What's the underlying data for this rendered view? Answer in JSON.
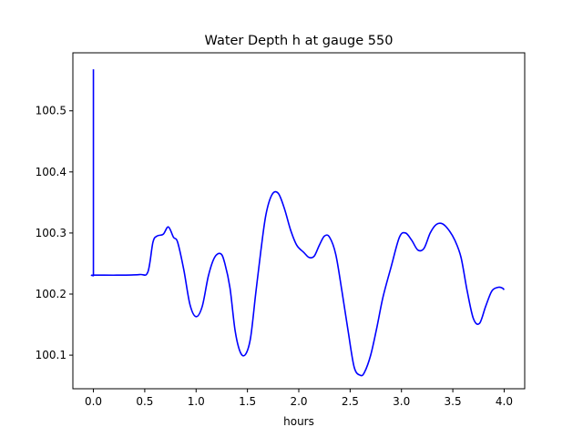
{
  "chart_data": {
    "type": "line",
    "title": "Water Depth h at gauge 550",
    "xlabel": "hours",
    "ylabel": "",
    "xlim": [
      -0.2,
      4.2
    ],
    "ylim": [
      100.045,
      100.595
    ],
    "xticks": [
      0.0,
      0.5,
      1.0,
      1.5,
      2.0,
      2.5,
      3.0,
      3.5,
      4.0
    ],
    "xtick_labels": [
      "0.0",
      "0.5",
      "1.0",
      "1.5",
      "2.0",
      "2.5",
      "3.0",
      "3.5",
      "4.0"
    ],
    "yticks": [
      100.1,
      100.2,
      100.3,
      100.4,
      100.5
    ],
    "ytick_labels": [
      "100.1",
      "100.2",
      "100.3",
      "100.4",
      "100.5"
    ],
    "grid": false,
    "series": [
      {
        "color": "#0000ff",
        "x": [
          0.0,
          0.0,
          0.0,
          0.25,
          0.45,
          0.53,
          0.58,
          0.62,
          0.68,
          0.73,
          0.78,
          0.82,
          0.88,
          0.94,
          1.0,
          1.06,
          1.12,
          1.18,
          1.24,
          1.28,
          1.33,
          1.38,
          1.43,
          1.48,
          1.53,
          1.58,
          1.63,
          1.68,
          1.74,
          1.8,
          1.86,
          1.92,
          1.98,
          2.05,
          2.1,
          2.15,
          2.2,
          2.25,
          2.3,
          2.36,
          2.42,
          2.48,
          2.54,
          2.6,
          2.64,
          2.7,
          2.76,
          2.82,
          2.9,
          2.98,
          3.04,
          3.1,
          3.16,
          3.22,
          3.28,
          3.34,
          3.4,
          3.46,
          3.52,
          3.58,
          3.64,
          3.7,
          3.76,
          3.82,
          3.88,
          3.94,
          3.98,
          4.0
        ],
        "values": [
          100.568,
          100.23,
          100.231,
          100.231,
          100.232,
          100.236,
          100.285,
          100.295,
          100.298,
          100.31,
          100.293,
          100.285,
          100.24,
          100.183,
          100.163,
          100.18,
          100.23,
          100.26,
          100.266,
          100.25,
          100.21,
          100.14,
          100.105,
          100.101,
          100.128,
          100.2,
          100.27,
          100.33,
          100.363,
          100.365,
          100.34,
          100.305,
          100.28,
          100.268,
          100.26,
          100.262,
          100.28,
          100.295,
          100.293,
          100.265,
          100.205,
          100.14,
          100.08,
          100.067,
          100.072,
          100.1,
          100.145,
          100.195,
          100.245,
          100.293,
          100.3,
          100.288,
          100.272,
          100.275,
          100.3,
          100.314,
          100.315,
          100.305,
          100.288,
          100.26,
          100.205,
          100.16,
          100.152,
          100.18,
          100.205,
          100.211,
          100.21,
          100.207
        ]
      }
    ]
  }
}
